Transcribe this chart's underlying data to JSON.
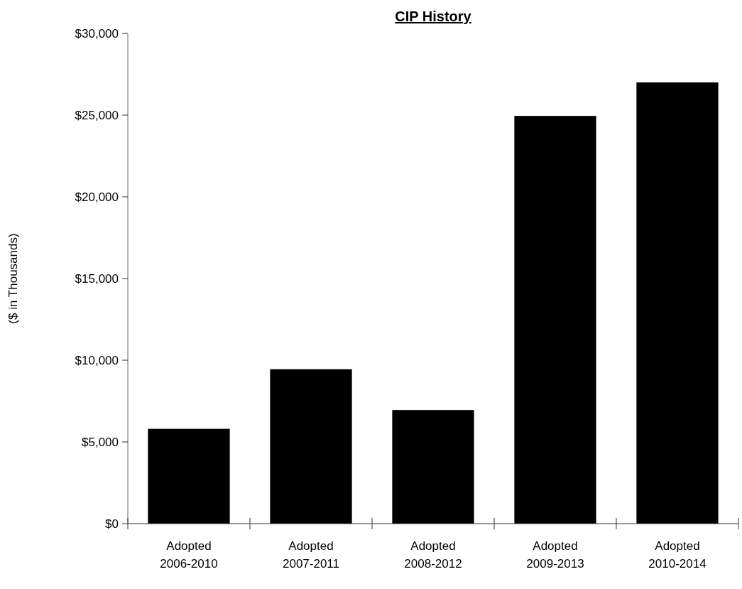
{
  "chart_data": {
    "type": "bar",
    "title": "CIP History",
    "ylabel": "($ in Thousands)",
    "categories": [
      "Adopted\n2006-2010",
      "Adopted\n2007-2011",
      "Adopted\n2008-2012",
      "Adopted\n2009-2013",
      "Adopted\n2010-2014"
    ],
    "values": [
      5800,
      9450,
      6950,
      24950,
      27000
    ],
    "color": "#000000",
    "ylim": [
      0,
      30000
    ],
    "yticks": [
      {
        "value": 0,
        "label": "$0"
      },
      {
        "value": 5000,
        "label": "$5,000"
      },
      {
        "value": 10000,
        "label": "$10,000"
      },
      {
        "value": 15000,
        "label": "$15,000"
      },
      {
        "value": 20000,
        "label": "$20,000"
      },
      {
        "value": 25000,
        "label": "$25,000"
      },
      {
        "value": 30000,
        "label": "$30,000"
      }
    ]
  }
}
